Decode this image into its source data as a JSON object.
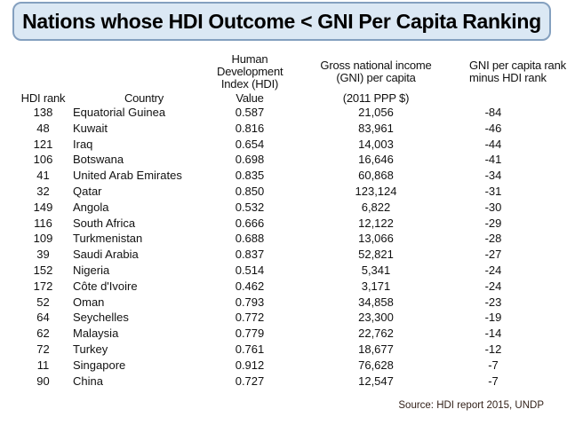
{
  "title": "Nations whose HDI Outcome < GNI Per Capita Ranking",
  "colors": {
    "title_box_bg": "#dbe8f4",
    "title_box_border": "#84a0bf",
    "page_bg": "#ffffff",
    "text": "#111111",
    "source_text": "#33221a"
  },
  "table": {
    "group_headers": {
      "hdi_index": "Human\nDevelopment\nIndex (HDI)",
      "gni_per_capita": "Gross national income\n(GNI) per capita",
      "gni_minus_hdi": "GNI per capita rank\nminus HDI rank"
    },
    "sub_headers": {
      "hdi_rank": "HDI rank",
      "country": "Country",
      "value": "Value",
      "ppp": "(2011 PPP $)"
    },
    "rows": [
      {
        "hdi_rank": "138",
        "country": "Equatorial Guinea",
        "hdi_value": "0.587",
        "gni": "21,056",
        "diff": "-84"
      },
      {
        "hdi_rank": "48",
        "country": "Kuwait",
        "hdi_value": "0.816",
        "gni": "83,961",
        "diff": "-46"
      },
      {
        "hdi_rank": "121",
        "country": "Iraq",
        "hdi_value": "0.654",
        "gni": "14,003",
        "diff": "-44"
      },
      {
        "hdi_rank": "106",
        "country": "Botswana",
        "hdi_value": "0.698",
        "gni": "16,646",
        "diff": "-41"
      },
      {
        "hdi_rank": "41",
        "country": "United Arab Emirates",
        "hdi_value": "0.835",
        "gni": "60,868",
        "diff": "-34"
      },
      {
        "hdi_rank": "32",
        "country": "Qatar",
        "hdi_value": "0.850",
        "gni": "123,124",
        "diff": "-31"
      },
      {
        "hdi_rank": "149",
        "country": "Angola",
        "hdi_value": "0.532",
        "gni": "6,822",
        "diff": "-30"
      },
      {
        "hdi_rank": "116",
        "country": "South Africa",
        "hdi_value": "0.666",
        "gni": "12,122",
        "diff": "-29"
      },
      {
        "hdi_rank": "109",
        "country": "Turkmenistan",
        "hdi_value": "0.688",
        "gni": "13,066",
        "diff": "-28"
      },
      {
        "hdi_rank": "39",
        "country": "Saudi Arabia",
        "hdi_value": "0.837",
        "gni": "52,821",
        "diff": "-27"
      },
      {
        "hdi_rank": "152",
        "country": "Nigeria",
        "hdi_value": "0.514",
        "gni": "5,341",
        "diff": "-24"
      },
      {
        "hdi_rank": "172",
        "country": "Côte d'Ivoire",
        "hdi_value": "0.462",
        "gni": "3,171",
        "diff": "-24"
      },
      {
        "hdi_rank": "52",
        "country": "Oman",
        "hdi_value": "0.793",
        "gni": "34,858",
        "diff": "-23"
      },
      {
        "hdi_rank": "64",
        "country": "Seychelles",
        "hdi_value": "0.772",
        "gni": "23,300",
        "diff": "-19"
      },
      {
        "hdi_rank": "62",
        "country": "Malaysia",
        "hdi_value": "0.779",
        "gni": "22,762",
        "diff": "-14"
      },
      {
        "hdi_rank": "72",
        "country": "Turkey",
        "hdi_value": "0.761",
        "gni": "18,677",
        "diff": "-12"
      },
      {
        "hdi_rank": "11",
        "country": "Singapore",
        "hdi_value": "0.912",
        "gni": "76,628",
        "diff": "-7"
      },
      {
        "hdi_rank": "90",
        "country": "China",
        "hdi_value": "0.727",
        "gni": "12,547",
        "diff": "-7"
      }
    ]
  },
  "source": "Source: HDI report 2015, UNDP"
}
